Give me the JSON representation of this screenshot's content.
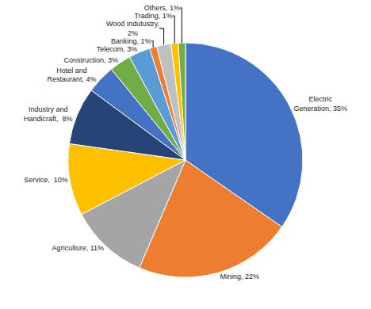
{
  "chart_data": {
    "type": "pie",
    "values": [
      35,
      22,
      11,
      10,
      8,
      4,
      3,
      3,
      1,
      2,
      1,
      1
    ],
    "value_labels": [
      "Electric\nGeneration, 35%",
      "Mining, 22%",
      "Agriculture, 11%",
      "Service,  10%",
      "Industry and\nHandicraft,  8%",
      "Hotel and\nRestaurant, 4%",
      "Construction, 3%",
      "Telecom, 3%",
      "Banking, 1%",
      "Wood Indutustry,\n2%",
      "Trading, 1%",
      "Others, 1%"
    ],
    "colors": [
      "#4472C4",
      "#ED7D31",
      "#A5A5A5",
      "#FFC000",
      "#264478",
      "#4472C4",
      "#70AD47",
      "#5B9BD5",
      "#ED7D31",
      "#C0C0C0",
      "#FFC000",
      "#70AD47"
    ],
    "data_labels": true,
    "legend": false
  }
}
